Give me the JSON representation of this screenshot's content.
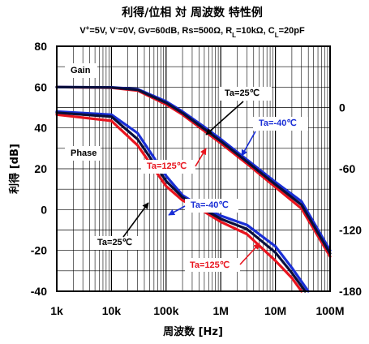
{
  "chart_data": {
    "type": "line",
    "title": "利得/位相 対 周波数 特性例",
    "subtitle": {
      "parts": [
        {
          "text": "V",
          "style": "normal"
        },
        {
          "text": "+",
          "style": "sup"
        },
        {
          "text": "=5V, V",
          "style": "normal"
        },
        {
          "text": "-",
          "style": "sup"
        },
        {
          "text": "=0V, Gv=60dB, Rs=500Ω, R",
          "style": "normal"
        },
        {
          "text": "L",
          "style": "sub"
        },
        {
          "text": "=10kΩ, C",
          "style": "normal"
        },
        {
          "text": "L",
          "style": "sub"
        },
        {
          "text": "=20pF",
          "style": "normal"
        }
      ]
    },
    "xlabel": "周波数 [Hz]",
    "ylabel": "利得 [dB]",
    "xscale": "log",
    "xlim": [
      1000,
      100000000
    ],
    "ylim": [
      -40,
      80
    ],
    "y2lim": [
      -180,
      60
    ],
    "x_ticks": [
      {
        "value": 1000,
        "label": "1k"
      },
      {
        "value": 10000,
        "label": "10k"
      },
      {
        "value": 100000,
        "label": "100k"
      },
      {
        "value": 1000000,
        "label": "1M"
      },
      {
        "value": 10000000,
        "label": "10M"
      },
      {
        "value": 100000000,
        "label": "100M"
      }
    ],
    "y_ticks": [
      {
        "value": 80,
        "label": "80"
      },
      {
        "value": 60,
        "label": "60"
      },
      {
        "value": 40,
        "label": "40"
      },
      {
        "value": 20,
        "label": "20"
      },
      {
        "value": 0,
        "label": "0"
      },
      {
        "value": -20,
        "label": "-20"
      },
      {
        "value": -40,
        "label": "-40"
      }
    ],
    "y2_ticks": [
      {
        "value": 0,
        "label": "0"
      },
      {
        "value": -60,
        "label": "-60"
      },
      {
        "value": -120,
        "label": "-120"
      },
      {
        "value": -180,
        "label": "-180"
      }
    ],
    "grid": true,
    "series": [
      {
        "name": "Ta=125℃",
        "group": "gain",
        "color": "#e8141e",
        "x": [
          1000,
          10000,
          30000,
          100000,
          200000,
          500000,
          1000000,
          3000000,
          10000000,
          30000000,
          100000000
        ],
        "y": [
          60,
          59.7,
          58.3,
          51.5,
          46.5,
          38.5,
          32.5,
          22.5,
          11,
          0.5,
          -23
        ]
      },
      {
        "name": "Ta=-40℃",
        "group": "gain",
        "color": "#1a2fd6",
        "x": [
          1000,
          10000,
          30000,
          100000,
          200000,
          500000,
          1000000,
          3000000,
          10000000,
          30000000,
          100000000
        ],
        "y": [
          60,
          59.9,
          59,
          53,
          48,
          40.5,
          34.5,
          24.5,
          13.5,
          4,
          -20
        ]
      },
      {
        "name": "Ta=25℃",
        "group": "gain",
        "color": "#0a0f3c",
        "x": [
          1000,
          10000,
          30000,
          100000,
          200000,
          500000,
          1000000,
          3000000,
          10000000,
          30000000,
          100000000
        ],
        "y": [
          60,
          59.8,
          58.7,
          52.3,
          47.3,
          39.5,
          33.5,
          23.5,
          12.3,
          2.3,
          -21.5
        ]
      },
      {
        "name": "Ta=125℃",
        "group": "phase",
        "color": "#e8141e",
        "x": [
          1000,
          10000,
          30000,
          100000,
          200000,
          500000,
          1000000,
          3000000,
          10000000,
          20000000,
          30000000
        ],
        "y": [
          -7,
          -13,
          -37,
          -77,
          -91,
          -102,
          -112,
          -124,
          -150,
          -167,
          -180
        ]
      },
      {
        "name": "Ta=-40℃",
        "group": "phase",
        "color": "#1a2fd6",
        "x": [
          1000,
          10000,
          30000,
          100000,
          200000,
          500000,
          1000000,
          3000000,
          10000000,
          20000000,
          40000000
        ],
        "y": [
          -4,
          -7,
          -25,
          -67,
          -86,
          -99,
          -106,
          -115,
          -136,
          -157,
          -180
        ]
      },
      {
        "name": "Ta=25℃",
        "group": "phase",
        "color": "#0a0f3c",
        "x": [
          1000,
          10000,
          30000,
          100000,
          200000,
          500000,
          1000000,
          3000000,
          10000000,
          20000000,
          35000000
        ],
        "y": [
          -5,
          -9,
          -31,
          -72,
          -88,
          -100,
          -109,
          -119,
          -142,
          -162,
          -180
        ]
      }
    ],
    "annotations": [
      {
        "text": "Gain",
        "color": "#000000"
      },
      {
        "text": "Phase",
        "color": "#000000"
      },
      {
        "text": "Ta=25℃",
        "color": "#000000"
      },
      {
        "text": "Ta=-40℃",
        "color": "#1a2fd6"
      },
      {
        "text": "Ta=125℃",
        "color": "#e8141e"
      },
      {
        "text": "Ta=-40℃",
        "color": "#1a2fd6"
      },
      {
        "text": "Ta=25℃",
        "color": "#000000"
      },
      {
        "text": "Ta=125℃",
        "color": "#e8141e"
      }
    ]
  }
}
